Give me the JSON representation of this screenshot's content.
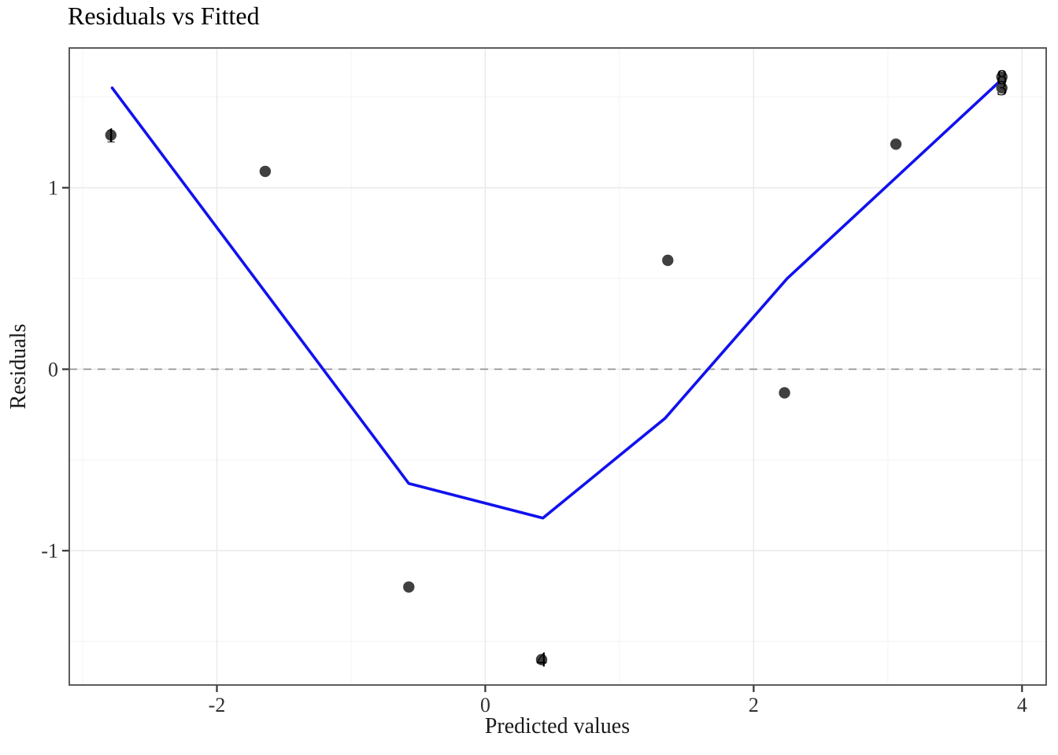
{
  "chart_data": {
    "type": "scatter",
    "title": "Residuals vs Fitted",
    "xlabel": "Predicted values",
    "ylabel": "Residuals",
    "xlim": [
      -3.1,
      4.18
    ],
    "ylim": [
      -1.74,
      1.77
    ],
    "grid": true,
    "legend": "none",
    "x_major_ticks": [
      -2,
      0,
      2,
      4
    ],
    "x_tick_labels": [
      "-2",
      "0",
      "2",
      "4"
    ],
    "y_major_ticks": [
      -1,
      0,
      1
    ],
    "y_tick_labels": [
      "-1",
      "0",
      "1"
    ],
    "x_minor_ticks": [
      -3,
      -1,
      1,
      3
    ],
    "y_minor_ticks": [
      -1.5,
      -0.5,
      0.5,
      1.5
    ],
    "zero_line_y": 0,
    "points": [
      {
        "x": -2.79,
        "y": 1.29,
        "label": "1"
      },
      {
        "x": -1.64,
        "y": 1.09,
        "label": ""
      },
      {
        "x": -0.57,
        "y": -1.2,
        "label": ""
      },
      {
        "x": 0.42,
        "y": -1.6,
        "label": "4"
      },
      {
        "x": 1.36,
        "y": 0.6,
        "label": ""
      },
      {
        "x": 2.23,
        "y": -0.13,
        "label": ""
      },
      {
        "x": 3.06,
        "y": 1.24,
        "label": ""
      },
      {
        "x": 3.85,
        "y": 1.61,
        "label": "8"
      },
      {
        "x": 3.85,
        "y": 1.55,
        "label": "3"
      }
    ],
    "smooth_line": {
      "name": "smoother",
      "points": [
        [
          -2.78,
          1.55
        ],
        [
          -0.57,
          -0.63
        ],
        [
          0.43,
          -0.82
        ],
        [
          1.34,
          -0.27
        ],
        [
          2.25,
          0.5
        ],
        [
          3.84,
          1.59
        ]
      ]
    },
    "colors": {
      "smooth_line": "#1111EE",
      "point": "#404040",
      "point_label": "#000000",
      "zero_line": "#8F8F8F",
      "panel_border": "#4A4A4A",
      "grid_major": "#EBEBEB",
      "grid_minor": "#F5F5F5",
      "tick_mark": "#333333",
      "tick_text": "#303030",
      "title_text": "#000000"
    }
  }
}
